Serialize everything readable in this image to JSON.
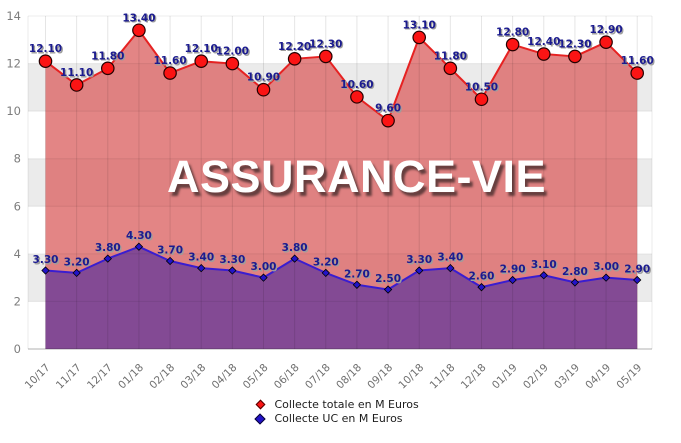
{
  "title": "ASSURANCE-VIE",
  "legend": {
    "position": "bottom-center"
  },
  "chart_data": {
    "type": "area",
    "title": "ASSURANCE-VIE",
    "categories": [
      "10/17",
      "11/17",
      "12/17",
      "01/18",
      "02/18",
      "03/18",
      "04/18",
      "05/18",
      "06/18",
      "07/18",
      "08/18",
      "09/18",
      "10/18",
      "11/18",
      "12/18",
      "01/19",
      "02/19",
      "03/19",
      "04/19",
      "05/19"
    ],
    "series": [
      {
        "name": "Collecte totale en M Euros",
        "values": [
          12.1,
          11.1,
          11.8,
          13.4,
          11.6,
          12.1,
          12.0,
          10.9,
          12.2,
          12.3,
          10.6,
          9.6,
          13.1,
          11.8,
          10.5,
          12.8,
          12.4,
          12.3,
          12.9,
          11.6
        ],
        "line_color": "#e62222",
        "fill_color": "rgba(219,99,99,0.78)",
        "marker": "circle",
        "marker_color": "#fb1414"
      },
      {
        "name": "Collecte UC en M Euros",
        "values": [
          3.3,
          3.2,
          3.8,
          4.3,
          3.7,
          3.4,
          3.3,
          3.0,
          3.8,
          3.2,
          2.7,
          2.5,
          3.3,
          3.4,
          2.6,
          2.9,
          3.1,
          2.8,
          3.0,
          2.9
        ],
        "line_color": "#3a1dd0",
        "fill_color": "rgba(124,70,150,0.93)",
        "marker": "diamond",
        "marker_color": "#2213c8"
      }
    ],
    "ylim": [
      0,
      14
    ],
    "yticks": [
      0,
      2,
      4,
      6,
      8,
      10,
      12,
      14
    ],
    "value_label_decimals": 2,
    "value_label_color": "#1b1b8f",
    "grid": {
      "vertical": true,
      "horizontal_bands": true,
      "band_color": "#ebebeb"
    },
    "legend_position": "bottom-center"
  }
}
